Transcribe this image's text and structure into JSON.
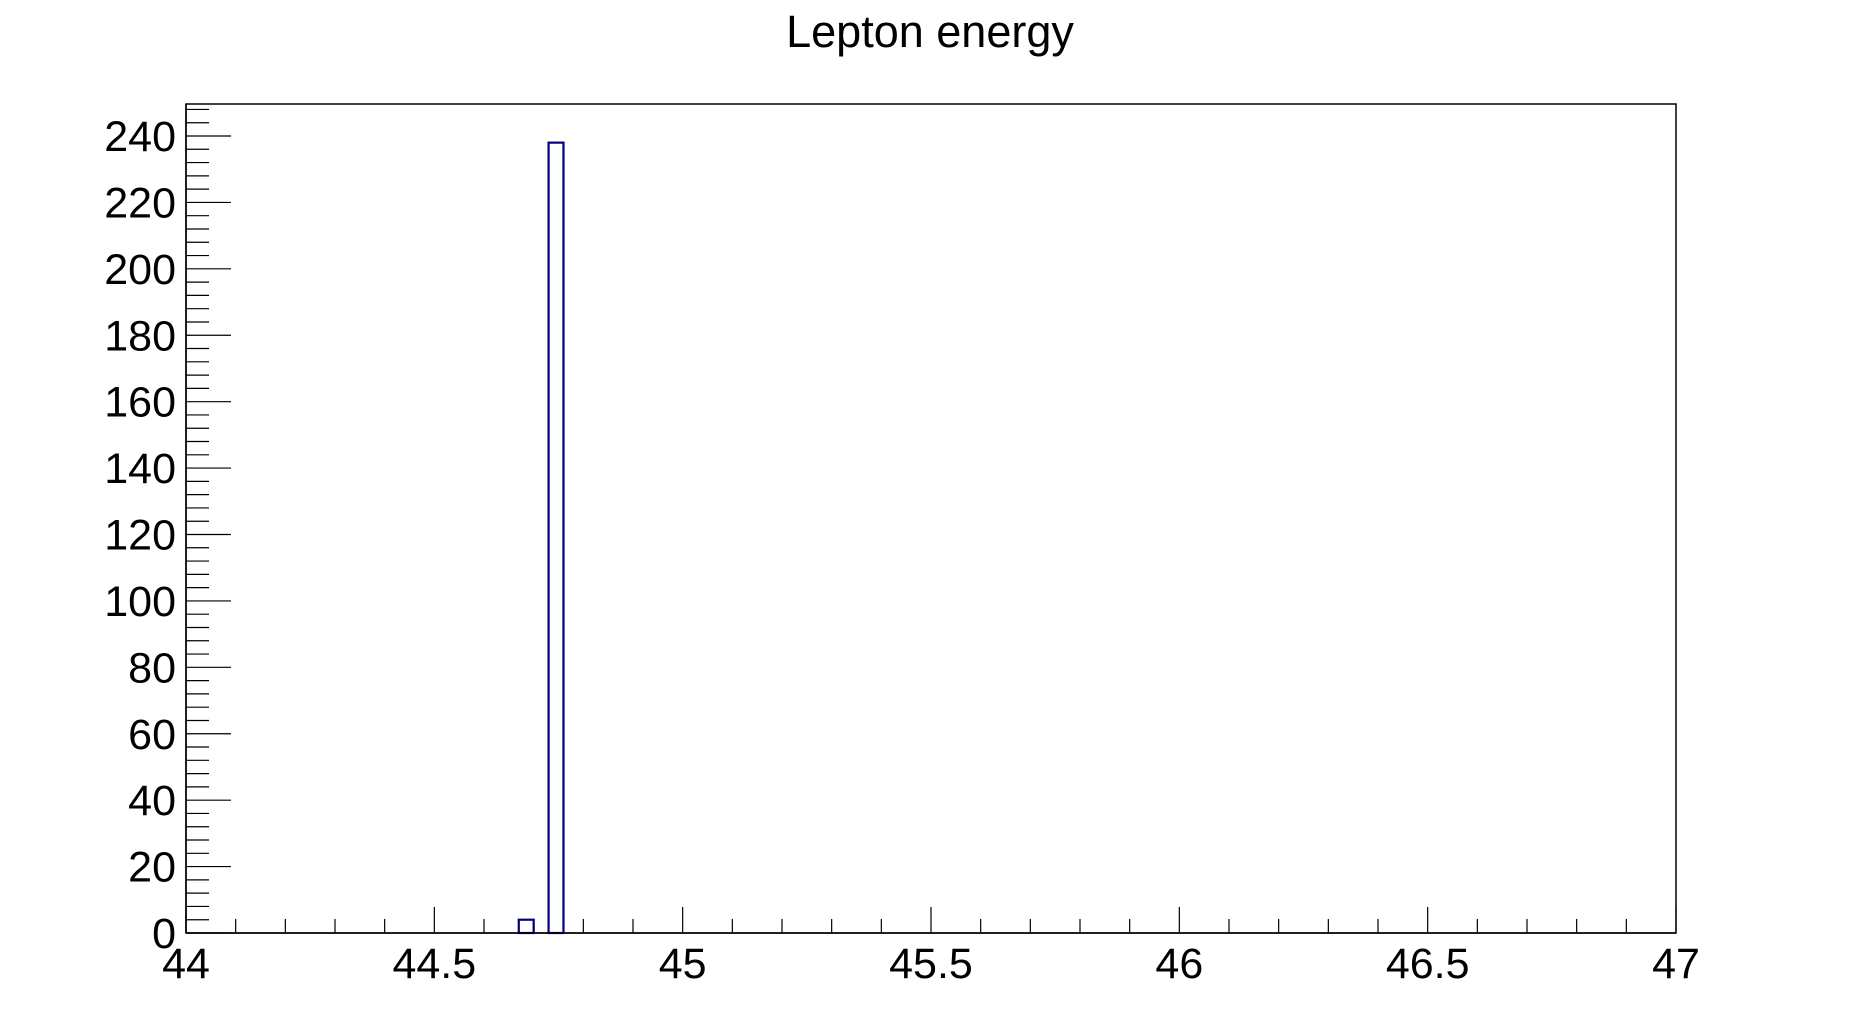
{
  "chart_data": {
    "type": "bar",
    "title": "Lepton energy",
    "xlabel": "",
    "ylabel": "",
    "xlim": [
      44,
      47
    ],
    "ylim": [
      0,
      250
    ],
    "x_ticks": [
      44,
      44.5,
      45,
      45.5,
      46,
      46.5,
      47
    ],
    "x_tick_labels": [
      "44",
      "44.5",
      "45",
      "45.5",
      "46",
      "46.5",
      "47"
    ],
    "y_ticks": [
      0,
      20,
      40,
      60,
      80,
      100,
      120,
      140,
      160,
      180,
      200,
      220,
      240
    ],
    "y_tick_labels": [
      "0",
      "20",
      "40",
      "60",
      "80",
      "100",
      "120",
      "140",
      "160",
      "180",
      "200",
      "220",
      "240"
    ],
    "bins": [
      {
        "x_low": 44.67,
        "x_high": 44.7,
        "value": 4
      },
      {
        "x_low": 44.73,
        "x_high": 44.76,
        "value": 238
      }
    ],
    "grid": false,
    "legend": "none",
    "colors": {
      "bar_outline": "#000080",
      "axes": "#000000"
    }
  }
}
